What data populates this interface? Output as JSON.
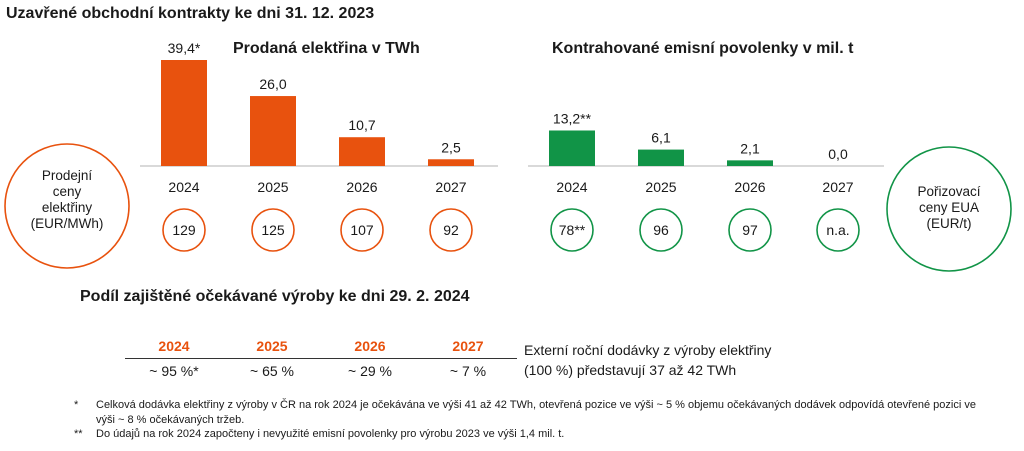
{
  "title": "Uzavřené obchodní kontrakty ke dni 31. 12. 2023",
  "colors": {
    "orange": "#E8520E",
    "green": "#119447",
    "axis": "#b3b3b3"
  },
  "chart_data": [
    {
      "type": "bar",
      "title": "Prodaná elektřina v TWh",
      "categories": [
        "2024",
        "2025",
        "2026",
        "2027"
      ],
      "values": [
        39.4,
        26.0,
        10.7,
        2.5
      ],
      "value_labels": [
        "39,4*",
        "26,0",
        "10,7",
        "2,5"
      ],
      "color": "#E8520E",
      "circle_values": [
        "129",
        "125",
        "107",
        "92"
      ],
      "circle_caption": [
        "Prodejní",
        "ceny",
        "elektřiny",
        "(EUR/MWh)"
      ],
      "ylim": [
        0,
        39.4
      ]
    },
    {
      "type": "bar",
      "title": "Kontrahované emisní povolenky v mil. t",
      "categories": [
        "2024",
        "2025",
        "2026",
        "2027"
      ],
      "values": [
        13.2,
        6.1,
        2.1,
        0.0
      ],
      "value_labels": [
        "13,2**",
        "6,1",
        "2,1",
        "0,0"
      ],
      "color": "#119447",
      "circle_values": [
        "78**",
        "96",
        "97",
        "n.a."
      ],
      "circle_caption": [
        "Pořizovací",
        "ceny EUA",
        "(EUR/t)"
      ],
      "ylim": [
        0,
        39.4
      ]
    }
  ],
  "section2": {
    "title": "Podíl zajištěné očekávané výroby ke dni 29. 2. 2024",
    "years": [
      "2024",
      "2025",
      "2026",
      "2027"
    ],
    "shares": [
      "~ 95 %*",
      "~ 65 %",
      "~ 29 %",
      "~ 7 %"
    ],
    "external_line1": "Externí roční dodávky z výroby elektřiny",
    "external_line2": "(100 %) představují 37 až 42 TWh"
  },
  "footnotes": [
    {
      "mark": "*",
      "text": "Celková dodávka elektřiny z výroby v ČR na rok 2024 je očekávána ve výši 41 až 42 TWh, otevřená pozice ve výši ~ 5 % objemu očekávaných dodávek odpovídá otevřené pozici ve výši ~ 8 % očekávaných tržeb."
    },
    {
      "mark": "**",
      "text": "Do údajů na rok 2024 započteny i nevyužité emisní povolenky pro výrobu 2023 ve výši 1,4 mil. t."
    }
  ]
}
